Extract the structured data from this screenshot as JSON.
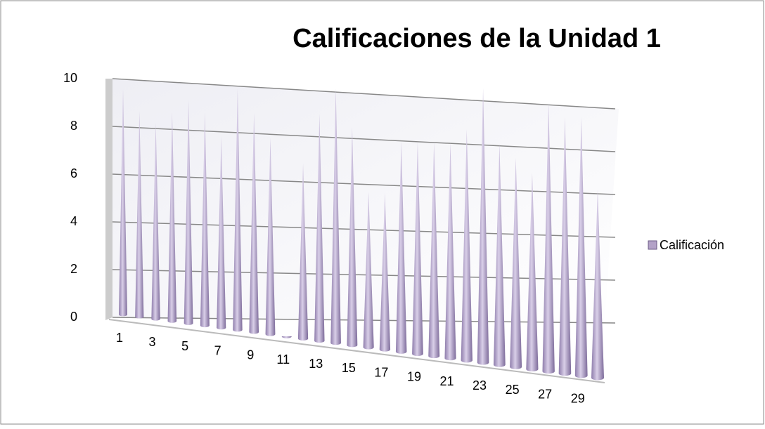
{
  "chart_data": {
    "type": "bar",
    "title": "Calificaciones de la Unidad 1",
    "categories": [
      "1",
      null,
      "3",
      null,
      "5",
      null,
      "7",
      null,
      "9",
      null,
      "11",
      null,
      "13",
      null,
      "15",
      null,
      "17",
      null,
      "19",
      null,
      "21",
      null,
      "23",
      null,
      "25",
      null,
      "27",
      null,
      "29",
      null
    ],
    "series": [
      {
        "name": "Calificación",
        "color": "#b3a2c7",
        "values": [
          10,
          9,
          8.5,
          9,
          9.5,
          9,
          8,
          10,
          9,
          8,
          0,
          7,
          9,
          10,
          8.5,
          6,
          6,
          8,
          8,
          8,
          8,
          8.5,
          10,
          8,
          7.5,
          7,
          9.5,
          9,
          9,
          6.5
        ]
      }
    ],
    "ylim": [
      0,
      10
    ],
    "yticks": [
      0,
      2,
      4,
      6,
      8,
      10
    ],
    "grid": true,
    "legend": "right"
  }
}
